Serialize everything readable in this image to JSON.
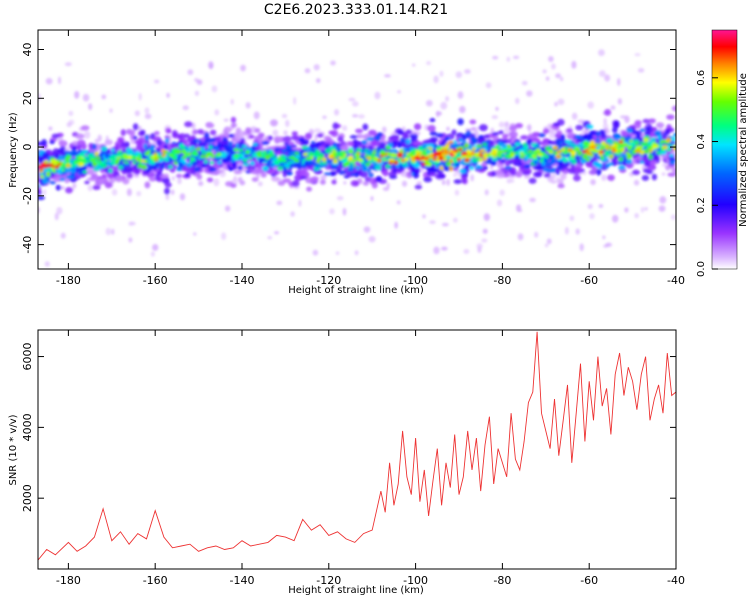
{
  "figure": {
    "title": "C2E6.2023.333.01.14.R21"
  },
  "chart_data": [
    {
      "type": "heatmap",
      "xlabel": "Height of straight line (km)",
      "ylabel": "Frequency (Hz)",
      "xlim": [
        -187,
        -40
      ],
      "ylim": [
        -50,
        48
      ],
      "x_ticks": [
        -180,
        -160,
        -140,
        -120,
        -100,
        -80,
        -60,
        -40
      ],
      "y_ticks": [
        -40,
        -20,
        0,
        20,
        40
      ],
      "grid": false,
      "colorbar": {
        "label": "Normalized spectral amplitude",
        "range": [
          0,
          0.75
        ],
        "ticks": [
          0.0,
          0.2,
          0.4,
          0.6
        ],
        "colormap": [
          "#ffffff",
          "#d9b3ff",
          "#9933ff",
          "#2200ff",
          "#0066ff",
          "#00e5ff",
          "#00ff80",
          "#66ff00",
          "#ffff00",
          "#ff8000",
          "#ff0000",
          "#ff1493"
        ]
      },
      "ridge": {
        "x": [
          -187,
          -180,
          -170,
          -160,
          -150,
          -140,
          -130,
          -120,
          -110,
          -100,
          -90,
          -80,
          -70,
          -60,
          -50,
          -40
        ],
        "frequency": [
          -9,
          -6,
          -5,
          -4,
          -3,
          -3,
          -5,
          -4,
          -4,
          -4,
          -3,
          -2,
          -3,
          -1,
          0,
          1
        ],
        "peak_amplitude": [
          0.72,
          0.5,
          0.45,
          0.55,
          0.45,
          0.4,
          0.45,
          0.5,
          0.55,
          0.6,
          0.7,
          0.45,
          0.5,
          0.6,
          0.55,
          0.5
        ]
      }
    },
    {
      "type": "line",
      "xlabel": "Height of straight line (km)",
      "ylabel": "SNR (10 * v/v)",
      "xlim": [
        -187,
        -40
      ],
      "ylim": [
        0,
        6750
      ],
      "x_ticks": [
        -180,
        -160,
        -140,
        -120,
        -100,
        -80,
        -60,
        -40
      ],
      "y_ticks": [
        2000,
        4000,
        6000
      ],
      "color": "#ee3333",
      "grid": false,
      "series": [
        {
          "x": [
            -187,
            -185,
            -183,
            -180,
            -178,
            -176,
            -174,
            -172,
            -170,
            -168,
            -166,
            -164,
            -162,
            -160,
            -158,
            -156,
            -154,
            -152,
            -150,
            -148,
            -146,
            -144,
            -142,
            -140,
            -138,
            -136,
            -134,
            -132,
            -130,
            -128,
            -126,
            -124,
            -122,
            -120,
            -118,
            -116,
            -114,
            -112,
            -110,
            -108,
            -107,
            -106,
            -105,
            -104,
            -103,
            -102,
            -101,
            -100,
            -99,
            -98,
            -97,
            -96,
            -95,
            -94,
            -93,
            -92,
            -91,
            -90,
            -89,
            -88,
            -87,
            -86,
            -85,
            -84,
            -83,
            -82,
            -81,
            -80,
            -79,
            -78,
            -77,
            -76,
            -75,
            -74,
            -73,
            -72,
            -71,
            -70,
            -69,
            -68,
            -67,
            -66,
            -65,
            -64,
            -63,
            -62,
            -61,
            -60,
            -59,
            -58,
            -57,
            -56,
            -55,
            -54,
            -53,
            -52,
            -51,
            -50,
            -49,
            -48,
            -47,
            -46,
            -45,
            -44,
            -43,
            -42,
            -41,
            -40
          ],
          "y": [
            250,
            550,
            400,
            750,
            500,
            650,
            900,
            1700,
            800,
            1050,
            700,
            1000,
            850,
            1650,
            900,
            600,
            650,
            700,
            500,
            600,
            650,
            550,
            600,
            800,
            650,
            700,
            750,
            950,
            900,
            800,
            1400,
            1100,
            1250,
            950,
            1050,
            850,
            750,
            1000,
            1100,
            2200,
            1600,
            3000,
            1800,
            2400,
            3900,
            2600,
            2100,
            3700,
            1900,
            2800,
            1500,
            2500,
            3400,
            1800,
            3000,
            2300,
            3800,
            2100,
            2600,
            3900,
            2800,
            3700,
            2200,
            3500,
            4300,
            2400,
            3400,
            3000,
            2600,
            4400,
            3100,
            2800,
            3600,
            4700,
            5000,
            6700,
            4400,
            3900,
            3400,
            4800,
            3200,
            4200,
            5200,
            3000,
            4400,
            5800,
            3600,
            5300,
            4200,
            6000,
            4600,
            5100,
            3800,
            5500,
            6100,
            4900,
            5700,
            5300,
            4500,
            5500,
            6000,
            4200,
            4800,
            5200,
            4400,
            6100,
            4900,
            5000
          ]
        }
      ]
    }
  ]
}
